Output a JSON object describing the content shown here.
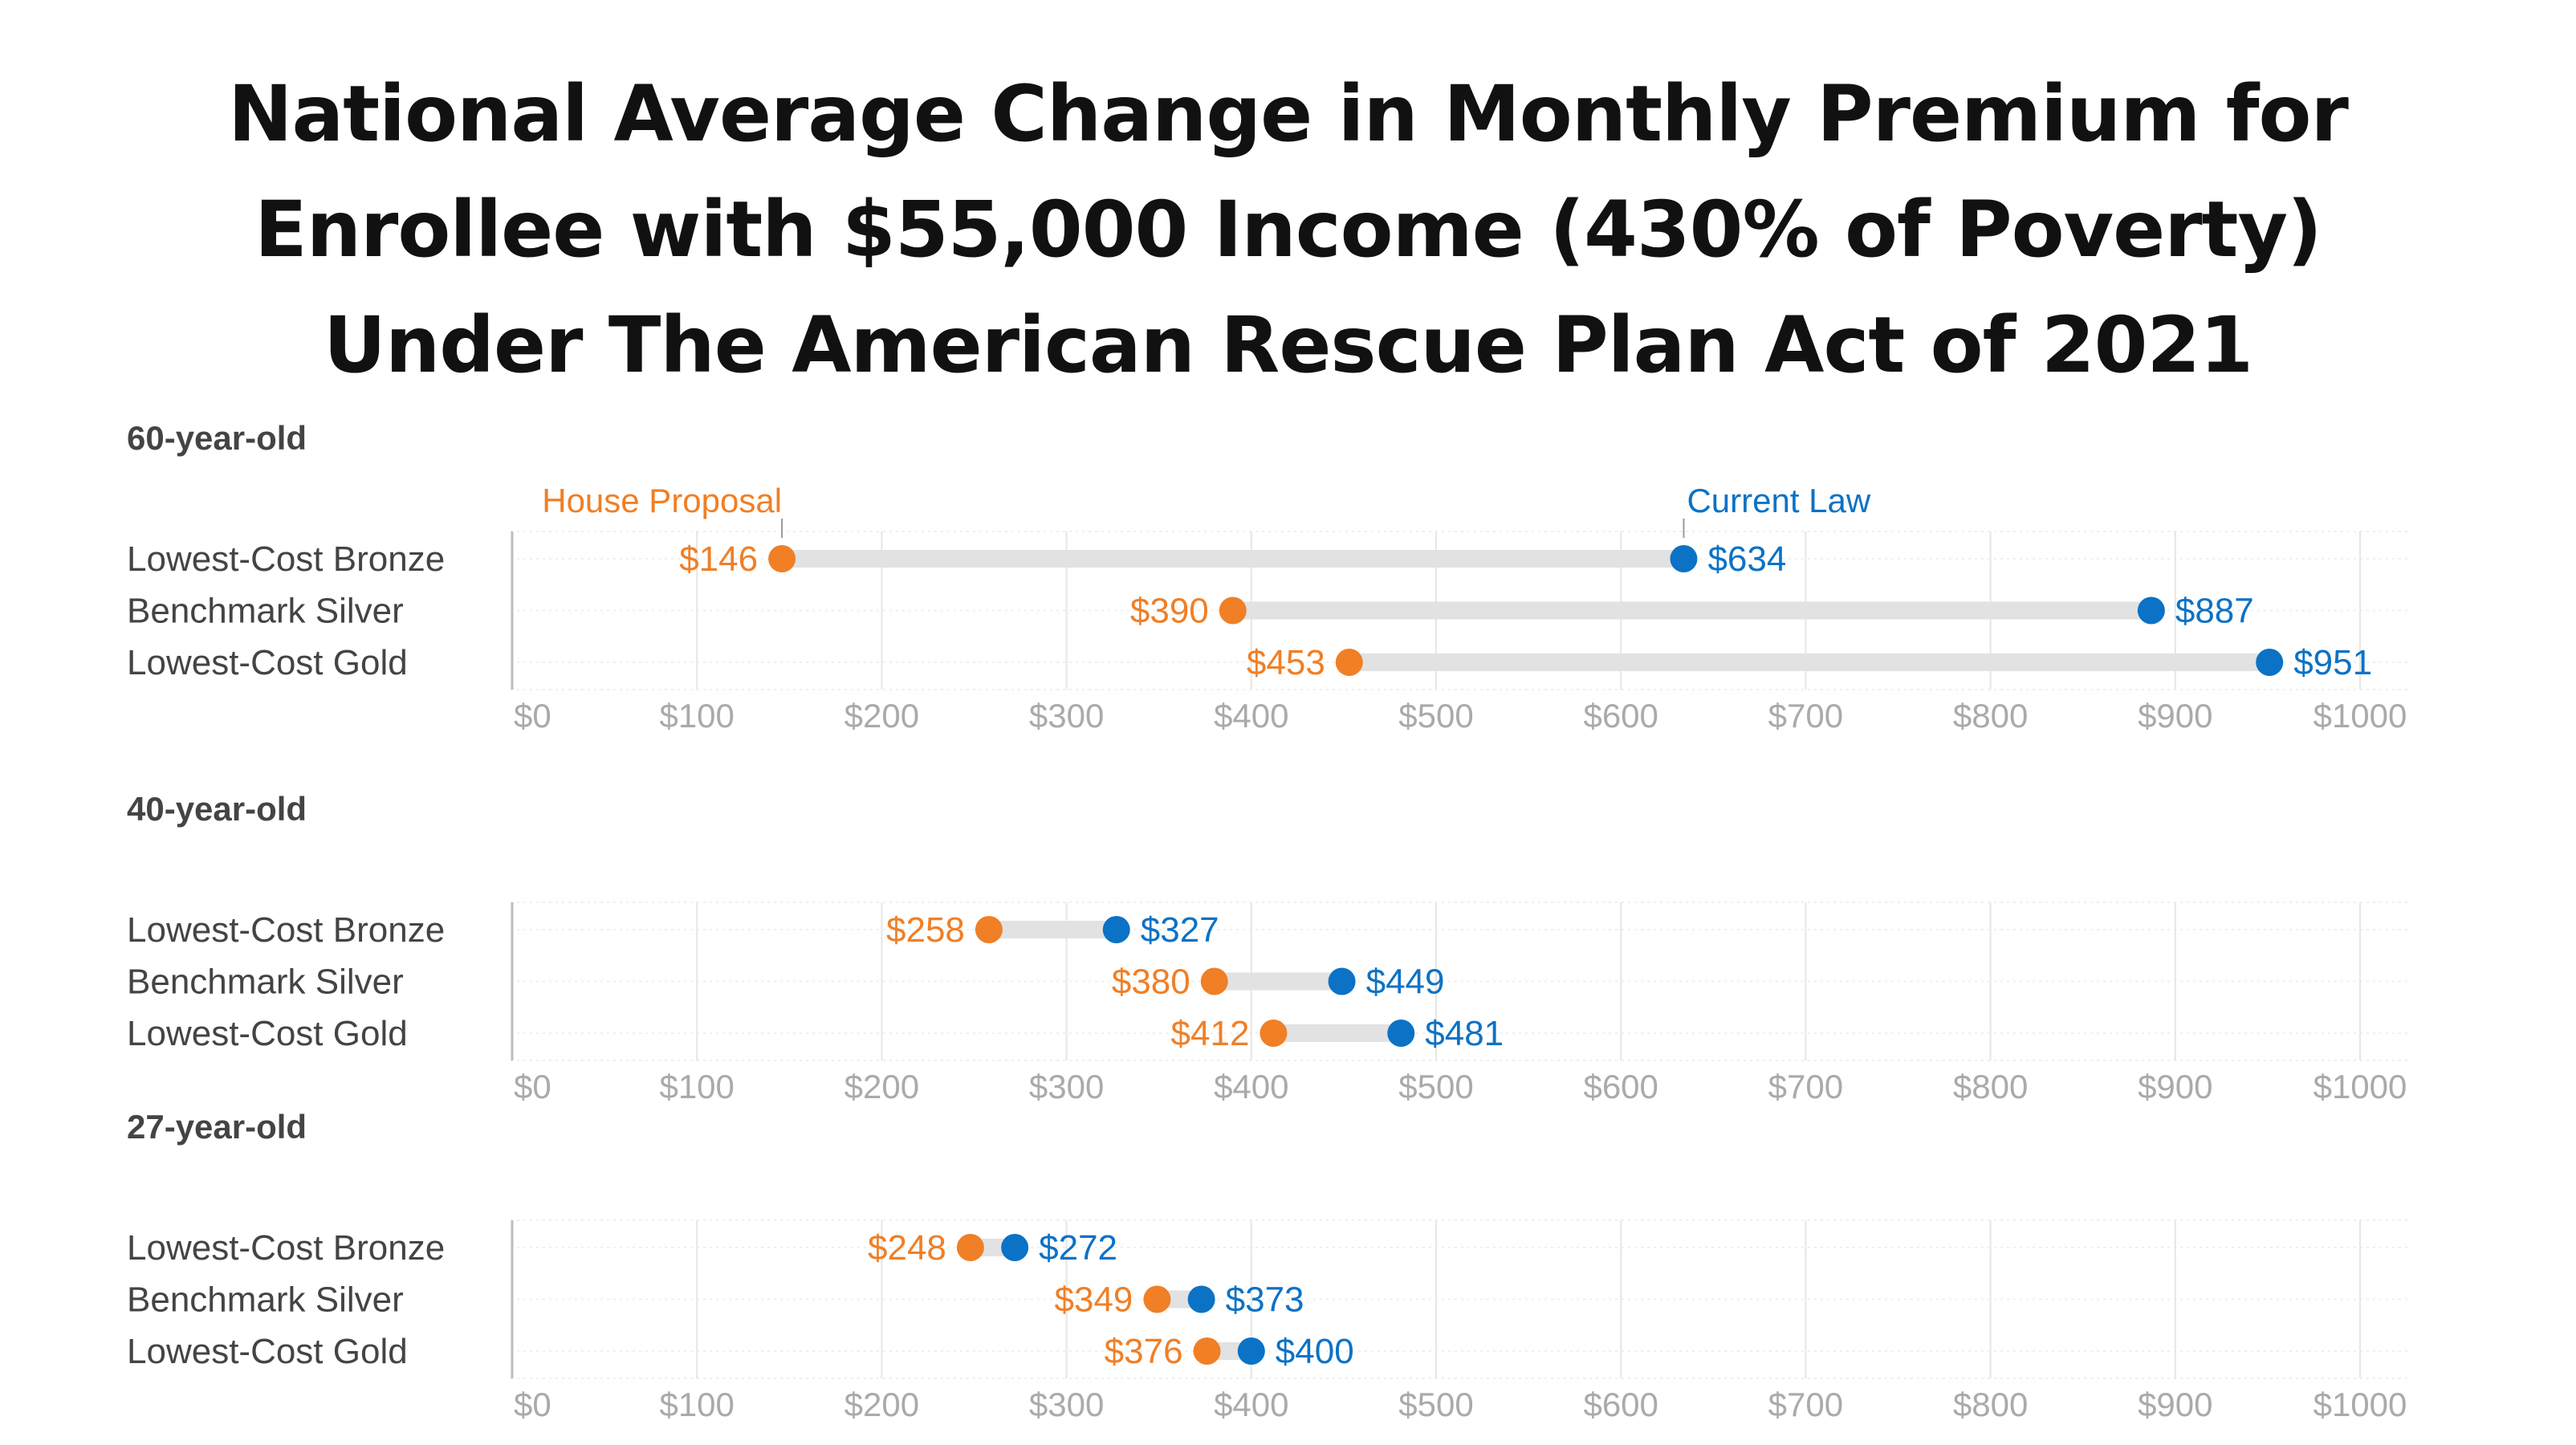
{
  "title_lines": [
    "National Average Change in Monthly Premium for",
    "Enrollee with $55,000 Income (430% of Poverty)",
    "Under The American Rescue Plan Act of 2021"
  ],
  "colors": {
    "house_proposal": "#F07F26",
    "current_law": "#0C72C5",
    "connector": "#E2E2E2",
    "grid": "#E6E6E6",
    "tick_label": "#AAAAAA",
    "category_label": "#444444",
    "panel_label": "#444444"
  },
  "chart_data": {
    "type": "dumbbell",
    "x_tick_labels": [
      "$0",
      "$100",
      "$200",
      "$300",
      "$400",
      "$500",
      "$600",
      "$700",
      "$800",
      "$900",
      "$1000"
    ],
    "xlim": [
      0,
      1000
    ],
    "grid": true,
    "categories": [
      "Lowest-Cost Bronze",
      "Benchmark Silver",
      "Lowest-Cost Gold"
    ],
    "series_names": [
      "House Proposal",
      "Current Law"
    ],
    "panels": [
      {
        "label": "60-year-old",
        "show_series_labels": true,
        "rows": [
          {
            "category": "Lowest-Cost Bronze",
            "house_proposal": 146,
            "current_law": 634,
            "house_label": "$146",
            "current_label": "$634"
          },
          {
            "category": "Benchmark Silver",
            "house_proposal": 390,
            "current_law": 887,
            "house_label": "$390",
            "current_label": "$887"
          },
          {
            "category": "Lowest-Cost Gold",
            "house_proposal": 453,
            "current_law": 951,
            "house_label": "$453",
            "current_label": "$951"
          }
        ]
      },
      {
        "label": "40-year-old",
        "show_series_labels": false,
        "rows": [
          {
            "category": "Lowest-Cost Bronze",
            "house_proposal": 258,
            "current_law": 327,
            "house_label": "$258",
            "current_label": "$327"
          },
          {
            "category": "Benchmark Silver",
            "house_proposal": 380,
            "current_law": 449,
            "house_label": "$380",
            "current_label": "$449"
          },
          {
            "category": "Lowest-Cost Gold",
            "house_proposal": 412,
            "current_law": 481,
            "house_label": "$412",
            "current_label": "$481"
          }
        ]
      },
      {
        "label": "27-year-old",
        "show_series_labels": false,
        "rows": [
          {
            "category": "Lowest-Cost Bronze",
            "house_proposal": 248,
            "current_law": 272,
            "house_label": "$248",
            "current_label": "$272"
          },
          {
            "category": "Benchmark Silver",
            "house_proposal": 349,
            "current_law": 373,
            "house_label": "$349",
            "current_label": "$373"
          },
          {
            "category": "Lowest-Cost Gold",
            "house_proposal": 376,
            "current_law": 400,
            "house_label": "$376",
            "current_label": "$400"
          }
        ]
      }
    ]
  }
}
